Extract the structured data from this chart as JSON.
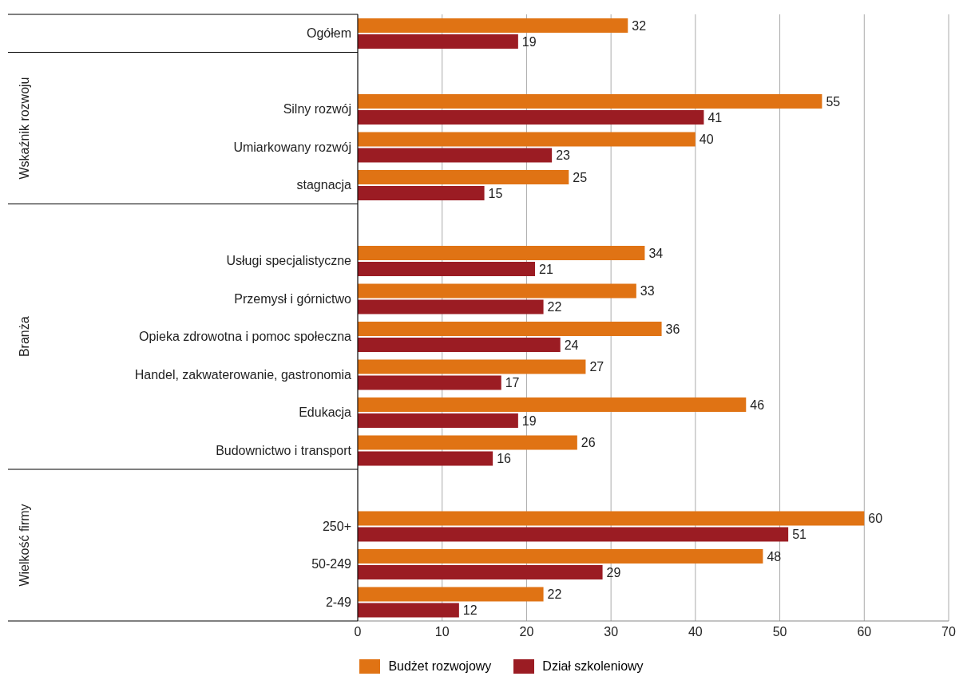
{
  "chart_data": {
    "type": "bar",
    "orientation": "horizontal",
    "categories": [
      "Ogółem",
      null,
      "Silny rozwój",
      "Umiarkowany rozwój",
      "stagnacja",
      null,
      "Usługi specjalistyczne",
      "Przemysł i górnictwo",
      "Opieka zdrowotna i pomoc społeczna",
      "Handel, zakwaterowanie, gastronomia",
      "Edukacja",
      "Budownictwo i transport",
      null,
      "250+",
      "50-249",
      "2-49"
    ],
    "series": [
      {
        "name": "Budżet rozwojowy",
        "color": "#e07314",
        "values": [
          32,
          null,
          55,
          40,
          25,
          null,
          34,
          33,
          36,
          27,
          46,
          26,
          null,
          60,
          48,
          22
        ]
      },
      {
        "name": "Dział szkoleniowy",
        "color": "#9b1c23",
        "values": [
          19,
          null,
          41,
          23,
          15,
          null,
          21,
          22,
          24,
          17,
          19,
          16,
          null,
          51,
          29,
          12
        ]
      }
    ],
    "annotations": [
      "Wskaźnik rozwoju",
      "Branża",
      "Wielkość firmy"
    ],
    "xlim": [
      0,
      70
    ],
    "xticks": [
      0,
      10,
      20,
      30,
      40,
      50,
      60,
      70
    ],
    "grid": "x",
    "legend": "bottom",
    "data_labels": true
  }
}
